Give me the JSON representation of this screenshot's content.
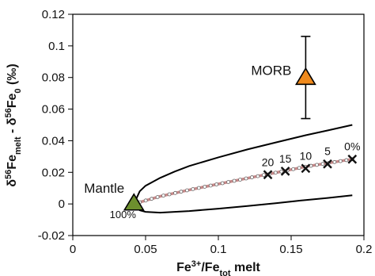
{
  "chart_data": {
    "type": "line",
    "xlim": [
      0,
      0.2
    ],
    "ylim": [
      -0.02,
      0.12
    ],
    "x_ticks": [
      0,
      0.05,
      0.1,
      0.15,
      0.2
    ],
    "x_tick_labels": [
      "0",
      "0.05",
      "0.1",
      "0.15",
      "0.2"
    ],
    "y_ticks": [
      -0.02,
      0,
      0.02,
      0.04,
      0.06,
      0.08,
      0.1,
      0.12
    ],
    "y_tick_labels": [
      "-0.02",
      "0",
      "0.02",
      "0.04",
      "0.06",
      "0.08",
      "0.1",
      "0.12"
    ],
    "xlabel": {
      "parts": [
        {
          "t": "Fe",
          "s": "base"
        },
        {
          "t": "3+",
          "s": "sup"
        },
        {
          "t": "/Fe",
          "s": "base"
        },
        {
          "t": "tot",
          "s": "sub"
        },
        {
          "t": " melt",
          "s": "base"
        }
      ]
    },
    "ylabel": {
      "parts": [
        {
          "t": "δ",
          "s": "base"
        },
        {
          "t": "56",
          "s": "sup"
        },
        {
          "t": "Fe",
          "s": "base"
        },
        {
          "t": "melt",
          "s": "sub"
        },
        {
          "t": " - δ",
          "s": "base"
        },
        {
          "t": "56",
          "s": "sup"
        },
        {
          "t": "Fe",
          "s": "base"
        },
        {
          "t": "0",
          "s": "sub"
        },
        {
          "t": " (‰)",
          "s": "base"
        }
      ]
    },
    "grid": false,
    "series": [
      {
        "role": "model_curve",
        "x": [
          0.042,
          0.06,
          0.08,
          0.1,
          0.12,
          0.14,
          0.16,
          0.175,
          0.192
        ],
        "y": [
          0,
          0.0048,
          0.0089,
          0.0126,
          0.0163,
          0.0199,
          0.0236,
          0.0258,
          0.0283
        ],
        "color": "#c98a8a"
      },
      {
        "role": "upper_envelope",
        "x": [
          0.042,
          0.046,
          0.05,
          0.06,
          0.07,
          0.08,
          0.1,
          0.12,
          0.14,
          0.16,
          0.175,
          0.192
        ],
        "y": [
          0,
          0.008,
          0.0115,
          0.0165,
          0.0205,
          0.024,
          0.0295,
          0.0345,
          0.039,
          0.0435,
          0.0465,
          0.05
        ],
        "color": "#000000"
      },
      {
        "role": "lower_envelope",
        "x": [
          0.042,
          0.046,
          0.05,
          0.06,
          0.07,
          0.08,
          0.1,
          0.12,
          0.14,
          0.16,
          0.175,
          0.192
        ],
        "y": [
          0,
          -0.004,
          -0.005,
          -0.0055,
          -0.005,
          -0.0045,
          -0.003,
          -0.0013,
          0.0005,
          0.0025,
          0.0038,
          0.0055
        ],
        "color": "#000000"
      }
    ],
    "melt_markers": [
      {
        "label": "20",
        "x": 0.134,
        "y": 0.0185
      },
      {
        "label": "15",
        "x": 0.146,
        "y": 0.0207
      },
      {
        "label": "10",
        "x": 0.16,
        "y": 0.0225
      },
      {
        "label": "5",
        "x": 0.175,
        "y": 0.0253
      },
      {
        "label": "0%",
        "x": 0.192,
        "y": 0.0283
      }
    ],
    "points": [
      {
        "label": "Mantle",
        "x": 0.042,
        "y": 0,
        "color": "#6d8f2e",
        "sublabel": "100%"
      },
      {
        "label": "MORB",
        "x": 0.16,
        "y": 0.0795,
        "color": "#f08a1c",
        "err_low": 0.054,
        "err_high": 0.106
      }
    ]
  }
}
